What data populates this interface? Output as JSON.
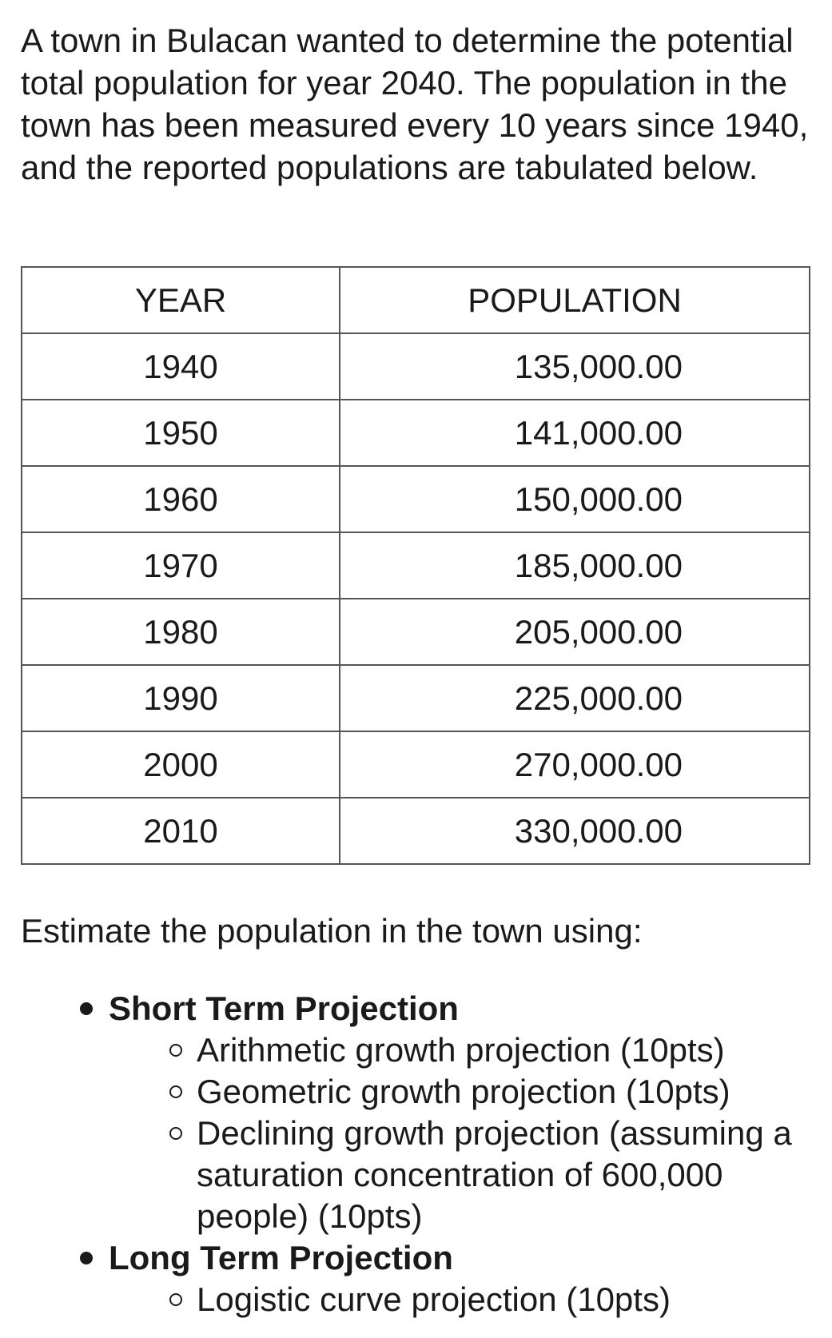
{
  "intro": "A town in Bulacan wanted to determine the potential total population for year 2040. The population in the town has been measured every 10 years since 1940, and the reported populations are tabulated below.",
  "table": {
    "headers": [
      "YEAR",
      "POPULATION"
    ],
    "rows": [
      {
        "year": "1940",
        "population": "135,000.00"
      },
      {
        "year": "1950",
        "population": "141,000.00"
      },
      {
        "year": "1960",
        "population": "150,000.00"
      },
      {
        "year": "1970",
        "population": "185,000.00"
      },
      {
        "year": "1980",
        "population": "205,000.00"
      },
      {
        "year": "1990",
        "population": "225,000.00"
      },
      {
        "year": "2000",
        "population": "270,000.00"
      },
      {
        "year": "2010",
        "population": "330,000.00"
      }
    ]
  },
  "instruction": "Estimate the population in the town using:",
  "sections": [
    {
      "title": "Short Term Projection",
      "items": [
        "Arithmetic growth projection (10pts)",
        "Geometric growth projection (10pts)",
        "Declining growth projection (assuming a saturation concentration of 600,000 people) (10pts)"
      ]
    },
    {
      "title": "Long Term Projection",
      "items": [
        "Logistic curve projection (10pts)"
      ]
    }
  ]
}
